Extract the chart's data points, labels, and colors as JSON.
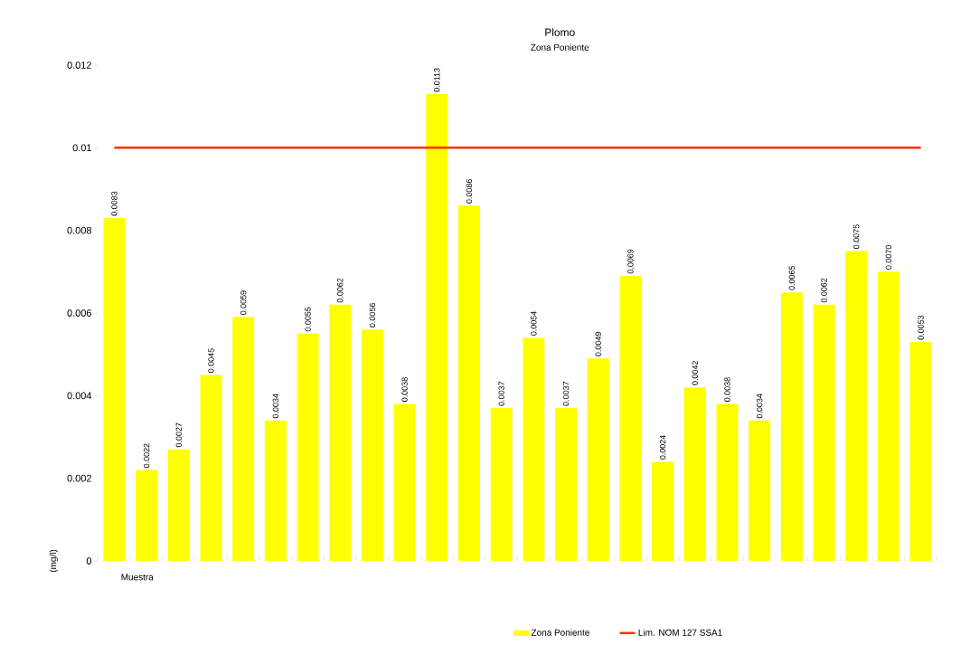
{
  "chart_data": {
    "type": "bar",
    "title": "Plomo",
    "subtitle": "Zona Poniente",
    "xlabel": "Muestra",
    "ylabel": "(mg/l)",
    "categories": [
      null,
      null,
      null,
      null,
      null,
      null,
      null,
      null,
      null,
      null,
      null,
      null,
      null,
      null,
      null,
      null,
      null,
      null,
      null,
      null,
      null,
      null,
      null,
      null,
      null,
      null
    ],
    "series": [
      {
        "name": "Zona Poniente",
        "color": "#ffff00",
        "values": [
          0.0083,
          0.0022,
          0.0027,
          0.0045,
          0.0059,
          0.0034,
          0.0055,
          0.0062,
          0.0056,
          0.0038,
          0.0113,
          0.0086,
          0.0037,
          0.0054,
          0.0037,
          0.0049,
          0.0069,
          0.0024,
          0.0042,
          0.0038,
          0.0034,
          0.0065,
          0.0062,
          0.0075,
          0.007,
          0.0053
        ]
      }
    ],
    "value_labels": [
      "0.0083",
      "0.0022",
      "0.0027",
      "0.0045",
      "0.0059",
      "0.0034",
      "0.0055",
      "0.0062",
      "0.0056",
      "0.0038",
      "0.0113",
      "0.0086",
      "0.0037",
      "0.0054",
      "0.0037",
      "0.0049",
      "0.0069",
      "0.0024",
      "0.0042",
      "0.0038",
      "0.0034",
      "0.0065",
      "0.0062",
      "0.0075",
      "0.0070",
      "0.0053"
    ],
    "ref_lines": [
      {
        "axis": "y",
        "value": 0.01,
        "label": "Lim. NOM 127 SSA1",
        "color": "#ff3300"
      }
    ],
    "ylim": [
      0,
      0.012
    ],
    "yticks": [
      0,
      0.002,
      0.004,
      0.006,
      0.008,
      0.01,
      0.012
    ],
    "grid": false,
    "legend": "bottom"
  }
}
